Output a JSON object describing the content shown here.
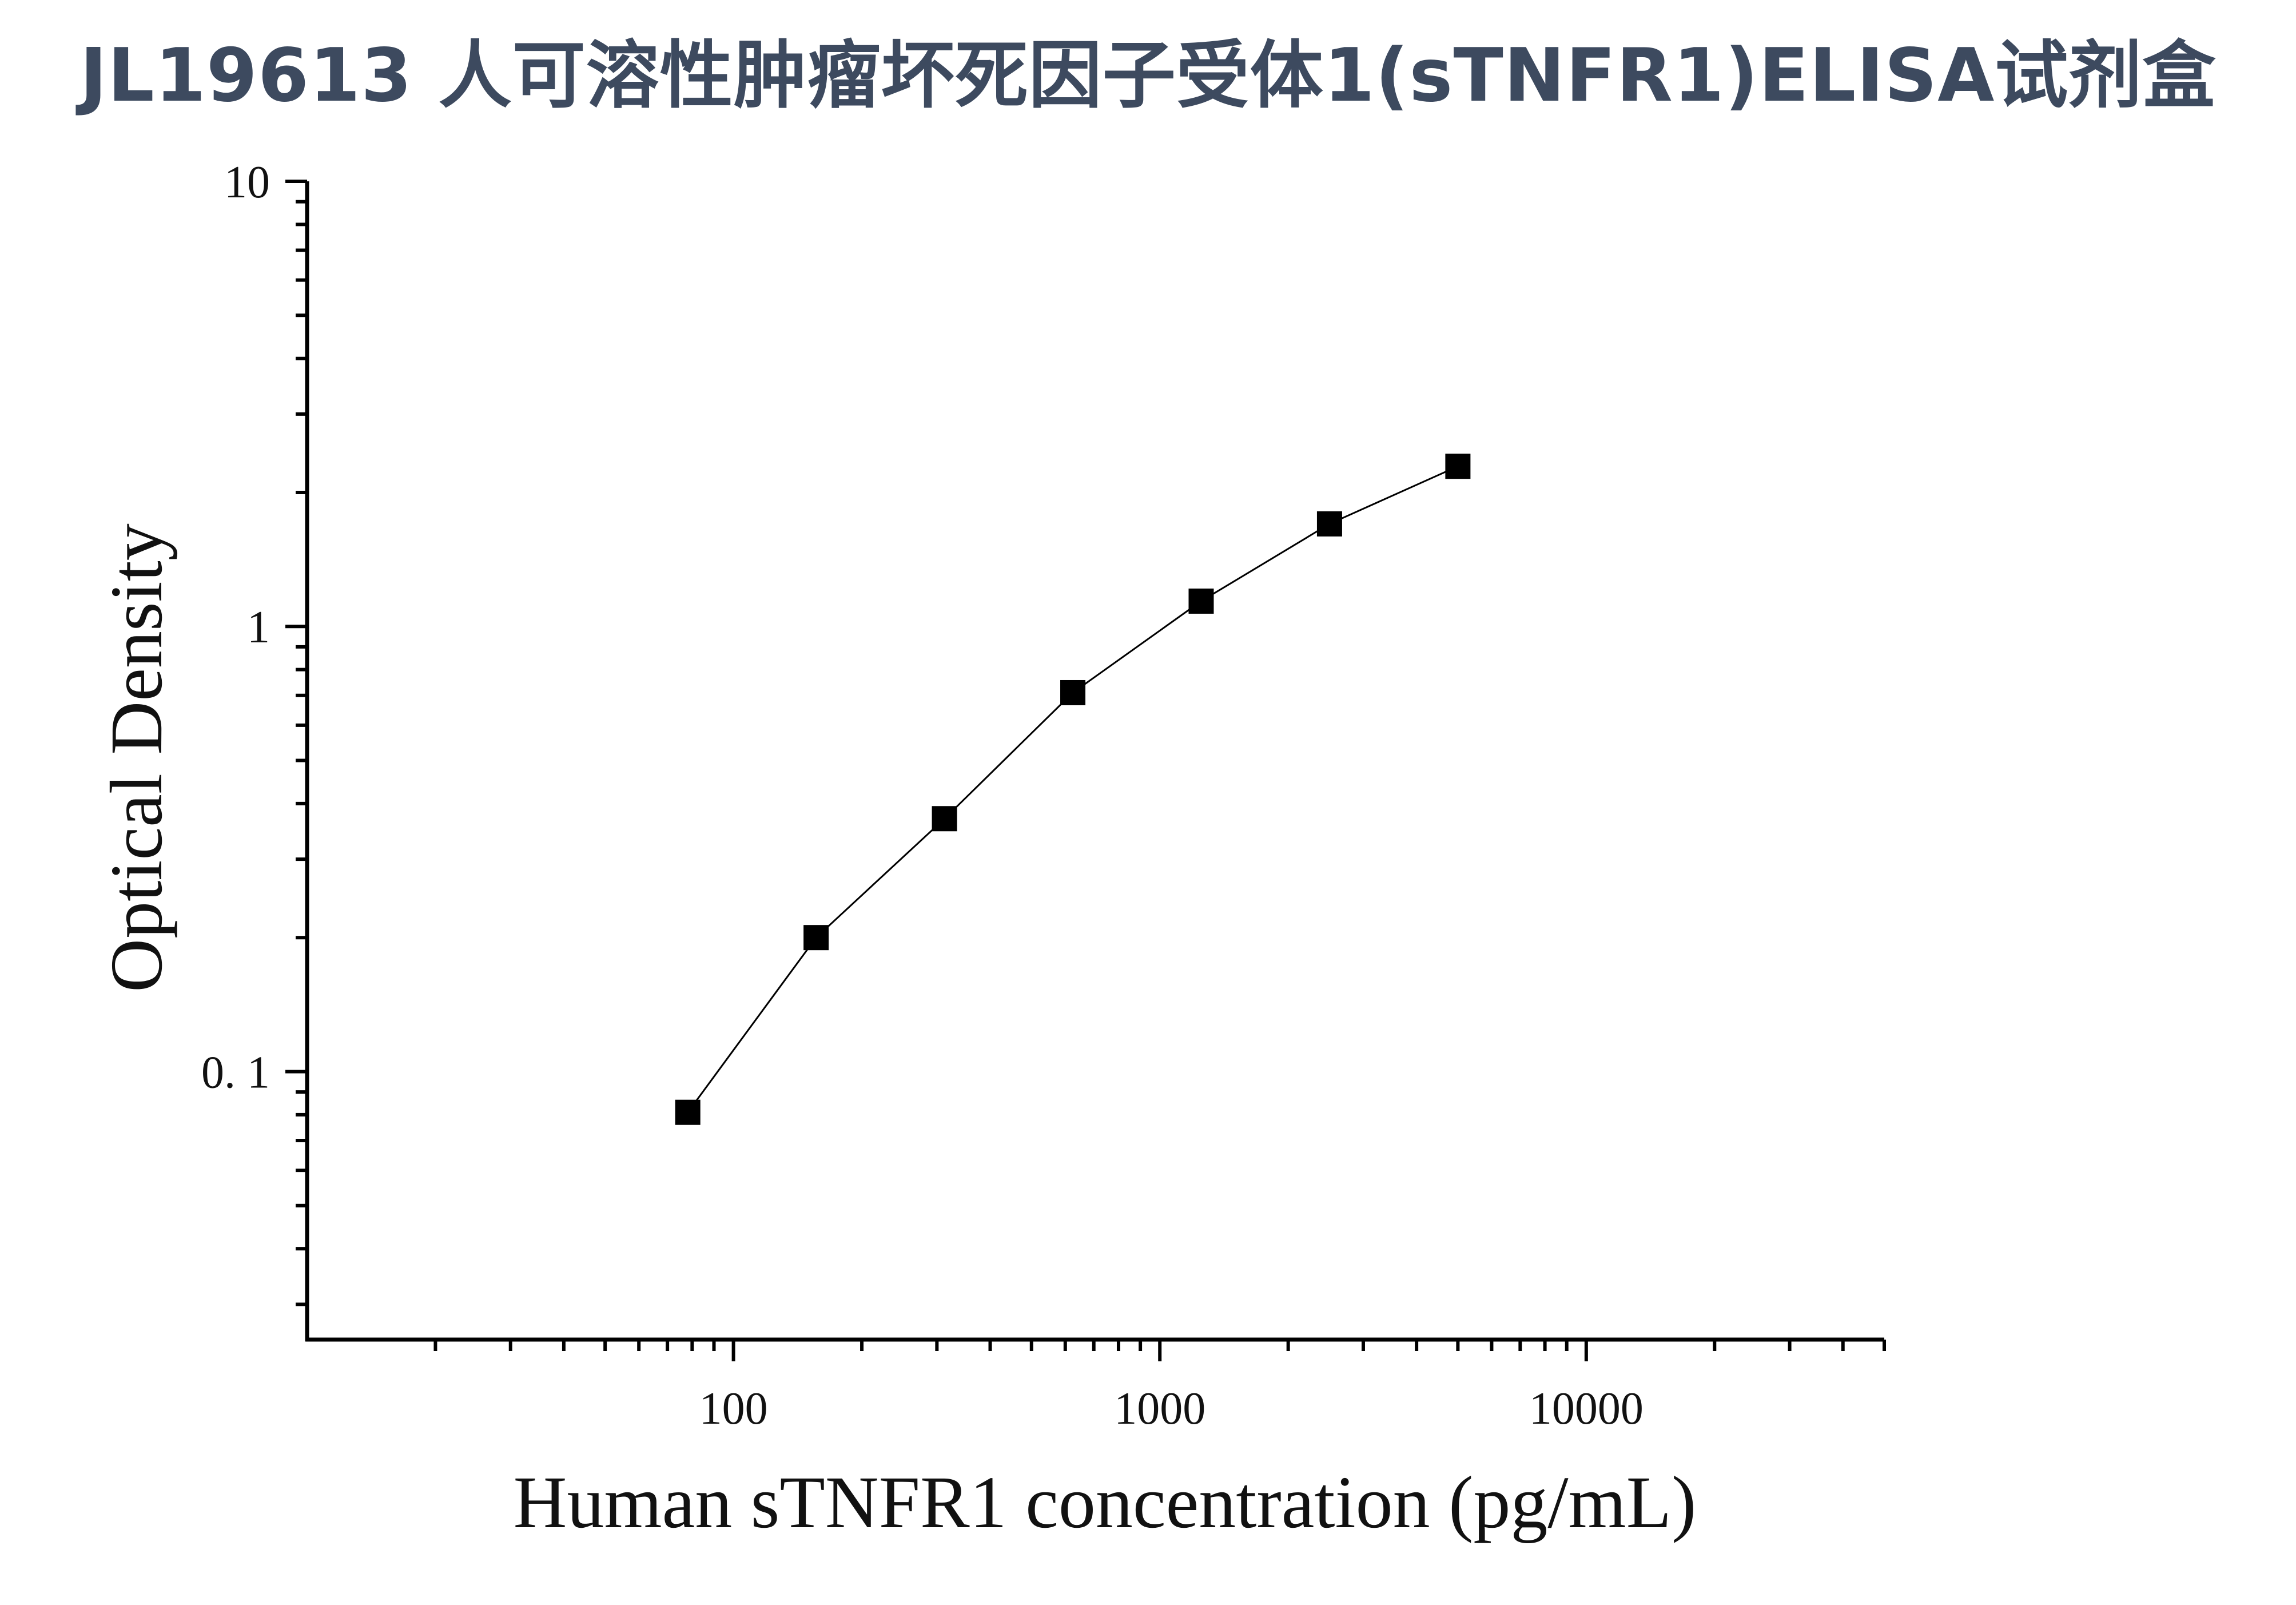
{
  "chart_data": {
    "type": "line",
    "title": "JL19613 人可溶性肿瘤坏死因子受体1(sTNFR1)ELISA试剂盒",
    "xlabel": "Human sTNFR1 concentration (pg/mL)",
    "ylabel": "Optical Density",
    "x_scale": "log",
    "y_scale": "log",
    "xlim": [
      10,
      50000
    ],
    "ylim": [
      0.025,
      10
    ],
    "x_ticks": [
      100,
      1000,
      10000
    ],
    "x_tick_labels": [
      "100",
      "1000",
      "10000"
    ],
    "y_ticks": [
      0.1,
      1,
      10
    ],
    "y_tick_labels": [
      "0. 1",
      "1",
      "10"
    ],
    "grid": false,
    "marker": "square",
    "line_color": "#000000",
    "series": [
      {
        "x": [
          78.125,
          156.25,
          312.5,
          625,
          1250,
          2500,
          5000
        ],
        "y": [
          0.081,
          0.2,
          0.37,
          0.71,
          1.14,
          1.7,
          2.29
        ]
      }
    ]
  }
}
